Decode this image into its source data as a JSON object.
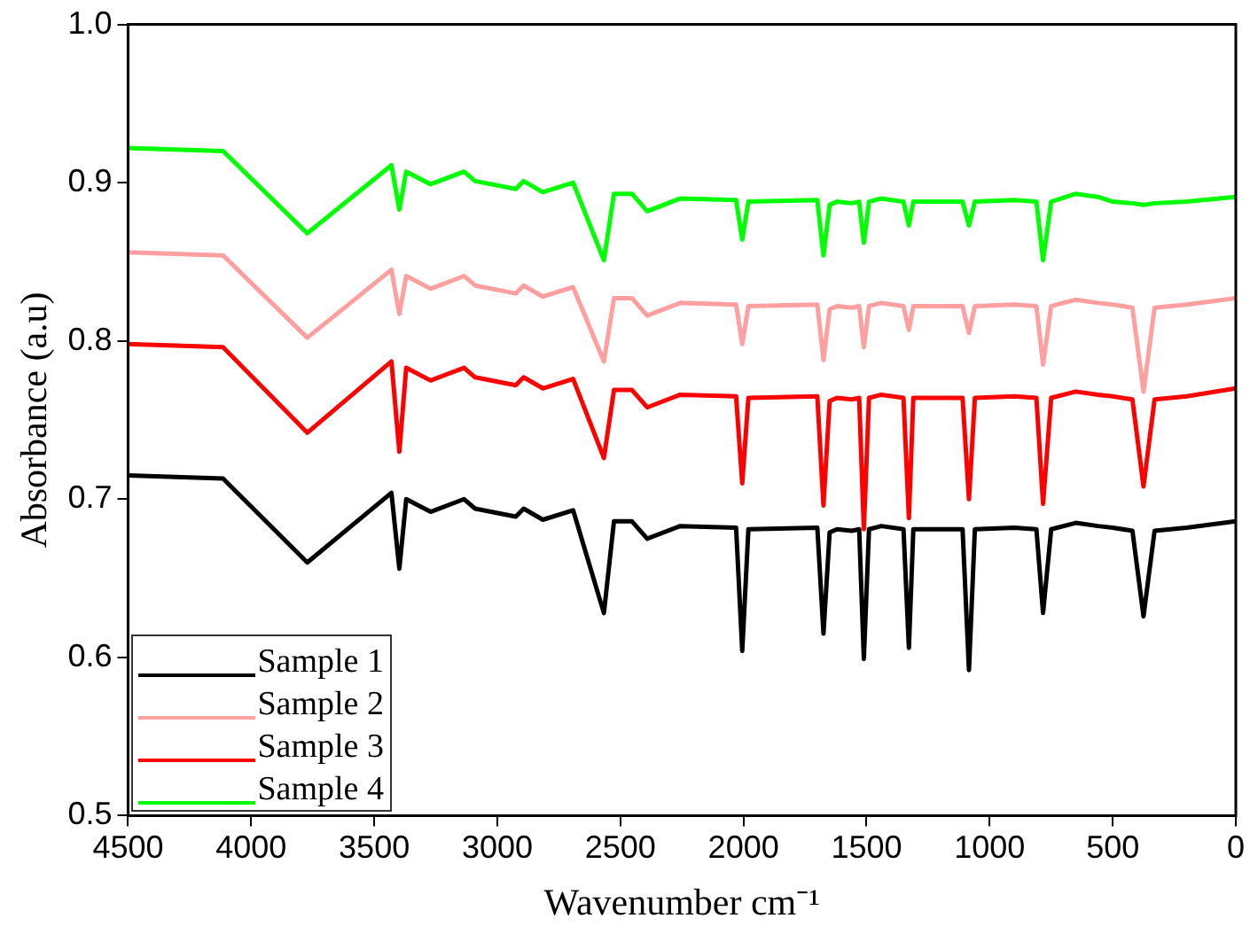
{
  "chart_data": {
    "type": "line",
    "xlabel": "Wavenumber cm⁻¹",
    "ylabel": "Absorbance (a.u)",
    "x": [
      4500,
      4114,
      3772,
      3430,
      3398,
      3370,
      3271,
      3135,
      3090,
      2925,
      2893,
      2815,
      2692,
      2567,
      2526,
      2453,
      2391,
      2257,
      2030,
      2005,
      1980,
      1700,
      1675,
      1650,
      1620,
      1560,
      1530,
      1511,
      1490,
      1440,
      1350,
      1328,
      1310,
      1200,
      1110,
      1084,
      1060,
      900,
      810,
      783,
      750,
      650,
      560,
      500,
      420,
      375,
      330,
      200,
      0
    ],
    "series": [
      {
        "name": "Sample 1",
        "color": "#000000",
        "values": [
          0.715,
          0.713,
          0.66,
          0.704,
          0.656,
          0.7,
          0.692,
          0.7,
          0.694,
          0.689,
          0.694,
          0.687,
          0.693,
          0.628,
          0.686,
          0.686,
          0.675,
          0.683,
          0.682,
          0.604,
          0.681,
          0.682,
          0.615,
          0.679,
          0.681,
          0.68,
          0.681,
          0.599,
          0.681,
          0.683,
          0.681,
          0.606,
          0.681,
          0.681,
          0.681,
          0.592,
          0.681,
          0.682,
          0.681,
          0.628,
          0.681,
          0.685,
          0.683,
          0.682,
          0.68,
          0.626,
          0.68,
          0.682,
          0.686
        ]
      },
      {
        "name": "Sample 2",
        "color": "#ff9f9f",
        "values": [
          0.856,
          0.854,
          0.802,
          0.845,
          0.817,
          0.841,
          0.833,
          0.841,
          0.835,
          0.83,
          0.835,
          0.828,
          0.834,
          0.787,
          0.827,
          0.827,
          0.816,
          0.824,
          0.823,
          0.798,
          0.822,
          0.823,
          0.788,
          0.82,
          0.822,
          0.821,
          0.822,
          0.796,
          0.822,
          0.824,
          0.822,
          0.807,
          0.822,
          0.822,
          0.822,
          0.805,
          0.822,
          0.823,
          0.822,
          0.785,
          0.822,
          0.826,
          0.824,
          0.823,
          0.821,
          0.768,
          0.821,
          0.823,
          0.827
        ]
      },
      {
        "name": "Sample 3",
        "color": "#ff0000",
        "values": [
          0.798,
          0.796,
          0.742,
          0.787,
          0.73,
          0.783,
          0.775,
          0.783,
          0.777,
          0.772,
          0.777,
          0.77,
          0.776,
          0.726,
          0.769,
          0.769,
          0.758,
          0.766,
          0.765,
          0.71,
          0.764,
          0.765,
          0.696,
          0.762,
          0.764,
          0.763,
          0.764,
          0.681,
          0.764,
          0.766,
          0.764,
          0.688,
          0.764,
          0.764,
          0.764,
          0.7,
          0.764,
          0.765,
          0.764,
          0.697,
          0.764,
          0.768,
          0.766,
          0.765,
          0.763,
          0.708,
          0.763,
          0.765,
          0.77
        ]
      },
      {
        "name": "Sample 4",
        "color": "#00ff00",
        "values": [
          0.922,
          0.92,
          0.868,
          0.911,
          0.883,
          0.907,
          0.899,
          0.907,
          0.901,
          0.896,
          0.901,
          0.894,
          0.9,
          0.851,
          0.893,
          0.893,
          0.882,
          0.89,
          0.889,
          0.864,
          0.888,
          0.889,
          0.854,
          0.886,
          0.888,
          0.887,
          0.888,
          0.862,
          0.888,
          0.89,
          0.888,
          0.873,
          0.888,
          0.888,
          0.888,
          0.873,
          0.888,
          0.889,
          0.888,
          0.851,
          0.888,
          0.893,
          0.891,
          0.888,
          0.887,
          0.886,
          0.887,
          0.888,
          0.891
        ]
      }
    ],
    "xlim": [
      4500,
      0
    ],
    "xticks": [
      4500,
      4000,
      3500,
      3000,
      2500,
      2000,
      1500,
      1000,
      500,
      0
    ],
    "ylim": [
      0.5,
      1.0
    ],
    "yticks": [
      0.5,
      0.6,
      0.7,
      0.8,
      0.9,
      {
        "value": 1.0,
        "label": "1.0"
      }
    ],
    "grid": false,
    "legend": "bottom left",
    "marker": "none",
    "line_style": "solid"
  }
}
